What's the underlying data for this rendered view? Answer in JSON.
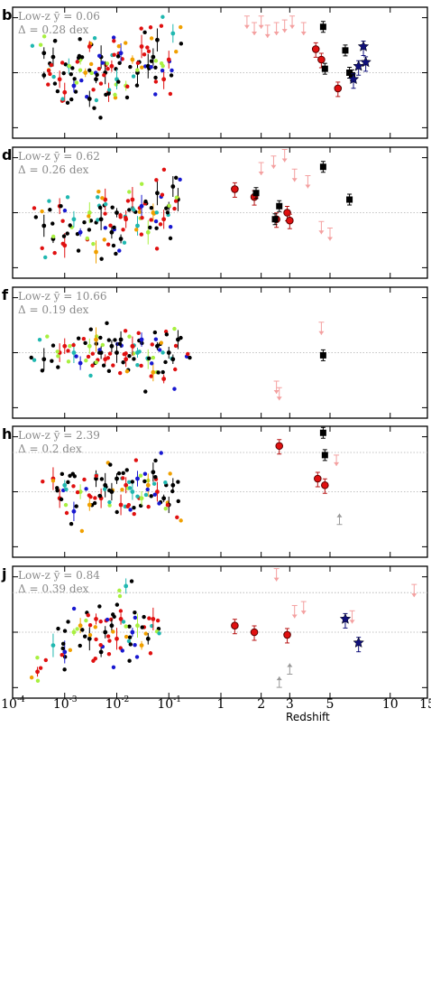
{
  "figure": {
    "x_axis": {
      "label": "Redshift",
      "tick_labels": [
        "10",
        "-4",
        "10",
        "-3",
        "10",
        "-2",
        "10",
        "-1",
        "1",
        "2",
        "3",
        "5",
        "10",
        "15"
      ]
    },
    "colors": {
      "black": "#000000",
      "red": "#e01010",
      "dark_red": "#b81414",
      "cyan": "#20b8b0",
      "blue": "#1818d0",
      "lime": "#a8f040",
      "orange": "#f0a000",
      "grey": "#999999",
      "pink": "#f4a0a0",
      "navy": "#10107a",
      "grid": "#b0b0b0"
    },
    "marker_shapes": [
      "circle",
      "square",
      "star",
      "arrow-down",
      "arrow-up"
    ]
  },
  "chart_data": [
    {
      "type": "scatter",
      "panel": "b",
      "annotation_line1": "Low-z ȳ = 0.06",
      "annotation_line2": "Δ = 0.28 dex",
      "x_scale": "hybrid: log for z<1, linear log(1+z) for z≥1",
      "x_range": [
        0.0001,
        15
      ],
      "dotted_reference": "median (relative level 0.5)",
      "series": [
        {
          "group": "low-z circles",
          "points": [
            [
              0.0004,
              0.48
            ],
            [
              0.0004,
              0.65
            ],
            [
              0.0006,
              0.62
            ],
            [
              0.0008,
              0.45
            ],
            [
              0.001,
              0.35
            ],
            [
              0.0012,
              0.55
            ],
            [
              0.0015,
              0.4
            ],
            [
              0.002,
              0.6
            ],
            [
              0.0025,
              0.5
            ],
            [
              0.003,
              0.3
            ],
            [
              0.003,
              0.7
            ],
            [
              0.004,
              0.45
            ],
            [
              0.005,
              0.62
            ],
            [
              0.006,
              0.5
            ],
            [
              0.007,
              0.35
            ],
            [
              0.008,
              0.55
            ],
            [
              0.01,
              0.45
            ],
            [
              0.012,
              0.65
            ],
            [
              0.015,
              0.4
            ],
            [
              0.02,
              0.6
            ],
            [
              0.025,
              0.5
            ],
            [
              0.03,
              0.7
            ],
            [
              0.04,
              0.55
            ],
            [
              0.05,
              0.62
            ],
            [
              0.06,
              0.75
            ],
            [
              0.08,
              0.45
            ],
            [
              0.1,
              0.6
            ],
            [
              0.12,
              0.8
            ]
          ]
        },
        {
          "group": "pink upper limits",
          "points": [
            [
              1.6,
              0.85
            ],
            [
              1.8,
              0.8
            ],
            [
              2.0,
              0.85
            ],
            [
              2.2,
              0.78
            ],
            [
              2.5,
              0.8
            ],
            [
              2.8,
              0.82
            ],
            [
              3.1,
              0.85
            ],
            [
              3.6,
              0.8
            ]
          ]
        },
        {
          "group": "red circles high-z",
          "points": [
            [
              4.2,
              0.68
            ],
            [
              4.5,
              0.6
            ],
            [
              5.5,
              0.38
            ]
          ]
        },
        {
          "group": "black squares",
          "points": [
            [
              4.6,
              0.85
            ],
            [
              4.7,
              0.53
            ],
            [
              6.0,
              0.67
            ],
            [
              6.3,
              0.5
            ],
            [
              6.5,
              0.48
            ]
          ]
        },
        {
          "group": "navy stars",
          "points": [
            [
              6.6,
              0.45
            ],
            [
              7.0,
              0.55
            ],
            [
              7.4,
              0.7
            ],
            [
              7.6,
              0.58
            ]
          ]
        }
      ]
    },
    {
      "type": "scatter",
      "panel": "d",
      "annotation_line1": "Low-z ȳ = 0.62",
      "annotation_line2": "Δ = 0.26 dex",
      "x_scale": "hybrid: log for z<1, linear log(1+z) for z≥1",
      "x_range": [
        0.0001,
        15
      ],
      "dotted_reference": "median (relative level 0.5)",
      "series": [
        {
          "group": "low-z circles",
          "points": [
            [
              0.0004,
              0.4
            ],
            [
              0.0006,
              0.3
            ],
            [
              0.0008,
              0.55
            ],
            [
              0.001,
              0.25
            ],
            [
              0.0015,
              0.45
            ],
            [
              0.002,
              0.35
            ],
            [
              0.003,
              0.5
            ],
            [
              0.004,
              0.2
            ],
            [
              0.005,
              0.45
            ],
            [
              0.006,
              0.6
            ],
            [
              0.008,
              0.35
            ],
            [
              0.01,
              0.5
            ],
            [
              0.012,
              0.3
            ],
            [
              0.015,
              0.45
            ],
            [
              0.02,
              0.6
            ],
            [
              0.025,
              0.4
            ],
            [
              0.03,
              0.55
            ],
            [
              0.04,
              0.35
            ],
            [
              0.05,
              0.5
            ],
            [
              0.06,
              0.65
            ],
            [
              0.08,
              0.45
            ],
            [
              0.1,
              0.55
            ],
            [
              0.12,
              0.7
            ],
            [
              0.15,
              0.6
            ]
          ]
        },
        {
          "group": "pink upper limits",
          "points": [
            [
              2.0,
              0.8
            ],
            [
              2.4,
              0.85
            ],
            [
              2.8,
              0.9
            ],
            [
              3.2,
              0.75
            ],
            [
              3.8,
              0.7
            ],
            [
              4.5,
              0.35
            ],
            [
              5.0,
              0.3
            ]
          ]
        },
        {
          "group": "red circles high-z",
          "points": [
            [
              1.3,
              0.68
            ],
            [
              1.8,
              0.62
            ],
            [
              2.5,
              0.45
            ],
            [
              2.9,
              0.5
            ],
            [
              3.0,
              0.44
            ]
          ]
        },
        {
          "group": "black squares",
          "points": [
            [
              1.85,
              0.65
            ],
            [
              2.45,
              0.45
            ],
            [
              2.6,
              0.55
            ],
            [
              4.6,
              0.85
            ],
            [
              6.3,
              0.6
            ]
          ]
        }
      ]
    },
    {
      "type": "scatter",
      "panel": "f",
      "annotation_line1": "Low-z ȳ = 10.66",
      "annotation_line2": "Δ = 0.19 dex",
      "x_scale": "hybrid: log for z<1, linear log(1+z) for z≥1",
      "x_range": [
        0.0001,
        15
      ],
      "dotted_reference": "median (relative level 0.5)",
      "series": [
        {
          "group": "low-z circles",
          "points": [
            [
              0.0004,
              0.45
            ],
            [
              0.0008,
              0.5
            ],
            [
              0.001,
              0.55
            ],
            [
              0.0015,
              0.5
            ],
            [
              0.002,
              0.42
            ],
            [
              0.003,
              0.55
            ],
            [
              0.004,
              0.6
            ],
            [
              0.005,
              0.5
            ],
            [
              0.006,
              0.45
            ],
            [
              0.008,
              0.55
            ],
            [
              0.01,
              0.5
            ],
            [
              0.012,
              0.6
            ],
            [
              0.015,
              0.45
            ],
            [
              0.02,
              0.55
            ],
            [
              0.025,
              0.5
            ],
            [
              0.03,
              0.6
            ],
            [
              0.04,
              0.45
            ],
            [
              0.05,
              0.35
            ],
            [
              0.06,
              0.55
            ],
            [
              0.08,
              0.3
            ],
            [
              0.1,
              0.5
            ],
            [
              0.12,
              0.45
            ],
            [
              0.15,
              0.6
            ]
          ]
        },
        {
          "group": "pink limits",
          "points": [
            [
              2.5,
              0.2
            ],
            [
              2.6,
              0.15
            ],
            [
              4.5,
              0.65
            ]
          ]
        },
        {
          "group": "black squares",
          "points": [
            [
              4.6,
              0.48
            ]
          ]
        }
      ]
    },
    {
      "type": "scatter",
      "panel": "h",
      "annotation_line1": "Low-z ȳ = 2.39",
      "annotation_line2": "Δ = 0.2 dex",
      "x_scale": "hybrid: log for z<1, linear log(1+z) for z≥1",
      "x_range": [
        0.0001,
        15
      ],
      "dotted_reference": "median (relative level 0.5) and upper dotted line (0.8)",
      "series": [
        {
          "group": "low-z circles",
          "points": [
            [
              0.0006,
              0.6
            ],
            [
              0.0008,
              0.45
            ],
            [
              0.001,
              0.55
            ],
            [
              0.0015,
              0.35
            ],
            [
              0.002,
              0.5
            ],
            [
              0.003,
              0.4
            ],
            [
              0.004,
              0.6
            ],
            [
              0.005,
              0.45
            ],
            [
              0.006,
              0.55
            ],
            [
              0.008,
              0.5
            ],
            [
              0.01,
              0.6
            ],
            [
              0.012,
              0.4
            ],
            [
              0.015,
              0.55
            ],
            [
              0.02,
              0.5
            ],
            [
              0.025,
              0.6
            ],
            [
              0.03,
              0.45
            ],
            [
              0.04,
              0.55
            ],
            [
              0.05,
              0.65
            ],
            [
              0.06,
              0.5
            ],
            [
              0.08,
              0.45
            ],
            [
              0.1,
              0.4
            ],
            [
              0.12,
              0.55
            ]
          ]
        },
        {
          "group": "red circles high-z",
          "points": [
            [
              2.6,
              0.85
            ],
            [
              4.3,
              0.6
            ],
            [
              4.7,
              0.55
            ]
          ]
        },
        {
          "group": "black squares",
          "points": [
            [
              4.6,
              0.95
            ],
            [
              4.7,
              0.78
            ]
          ]
        },
        {
          "group": "limits",
          "points": [
            [
              5.4,
              0.78
            ],
            [
              5.6,
              0.25
            ]
          ]
        }
      ]
    },
    {
      "type": "scatter",
      "panel": "j",
      "annotation_line1": "Low-z ȳ = 0.84",
      "annotation_line2": "Δ = 0.39 dex",
      "x_scale": "hybrid: log for z<1, linear log(1+z) for z≥1",
      "x_range": [
        0.0001,
        15
      ],
      "dotted_reference": "median (relative level 0.5) and upper dotted line (0.8)",
      "series": [
        {
          "group": "low-z circles",
          "points": [
            [
              0.0003,
              0.2
            ],
            [
              0.0006,
              0.4
            ],
            [
              0.001,
              0.35
            ],
            [
              0.0015,
              0.5
            ],
            [
              0.002,
              0.55
            ],
            [
              0.003,
              0.45
            ],
            [
              0.004,
              0.6
            ],
            [
              0.005,
              0.35
            ],
            [
              0.006,
              0.5
            ],
            [
              0.008,
              0.55
            ],
            [
              0.01,
              0.45
            ],
            [
              0.012,
              0.6
            ],
            [
              0.015,
              0.85
            ],
            [
              0.02,
              0.5
            ],
            [
              0.025,
              0.55
            ],
            [
              0.03,
              0.4
            ],
            [
              0.04,
              0.45
            ],
            [
              0.05,
              0.6
            ]
          ]
        },
        {
          "group": "red circles high-z",
          "points": [
            [
              1.3,
              0.55
            ],
            [
              1.8,
              0.5
            ],
            [
              2.9,
              0.48
            ]
          ]
        },
        {
          "group": "navy stars",
          "points": [
            [
              6.0,
              0.6
            ],
            [
              7.0,
              0.42
            ]
          ]
        },
        {
          "group": "pink limits",
          "points": [
            [
              2.5,
              0.9
            ],
            [
              3.2,
              0.62
            ],
            [
              3.6,
              0.65
            ],
            [
              6.5,
              0.58
            ],
            [
              13.0,
              0.78
            ]
          ]
        },
        {
          "group": "grey limits",
          "points": [
            [
              2.6,
              0.15
            ],
            [
              3.0,
              0.25
            ]
          ]
        }
      ]
    }
  ]
}
